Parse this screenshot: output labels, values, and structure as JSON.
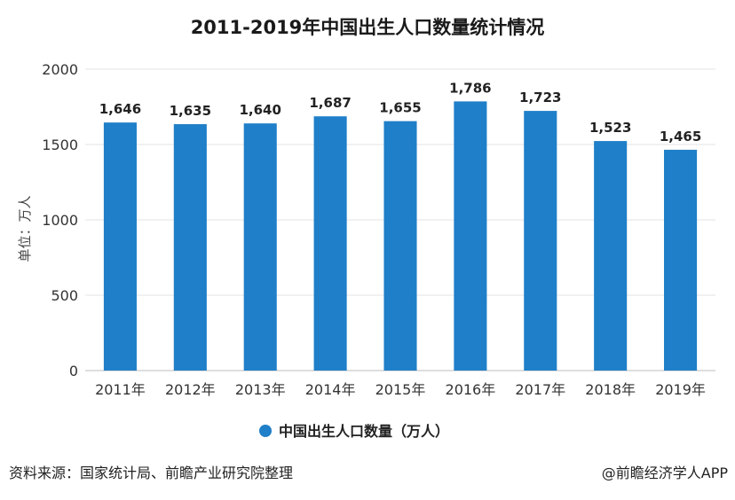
{
  "chart_data": {
    "type": "bar",
    "title": "2011-2019年中国出生人口数量统计情况",
    "categories": [
      "2011年",
      "2012年",
      "2013年",
      "2014年",
      "2015年",
      "2016年",
      "2017年",
      "2018年",
      "2019年"
    ],
    "series": [
      {
        "name": "中国出生人口数量（万人）",
        "values": [
          1646,
          1635,
          1640,
          1687,
          1655,
          1786,
          1723,
          1523,
          1465
        ],
        "labels": [
          "1,646",
          "1,635",
          "1,640",
          "1,687",
          "1,655",
          "1,786",
          "1,723",
          "1,523",
          "1,465"
        ],
        "color": "#1f7fc8"
      }
    ],
    "ylabel": "单位：万人",
    "yticks": [
      0,
      500,
      1000,
      1500,
      2000
    ],
    "ylim": [
      0,
      2000
    ],
    "grid": true,
    "legend_position": "bottom-center"
  },
  "footer": {
    "source": "资料来源：国家统计局、前瞻产业研究院整理",
    "brand": "@前瞻经济学人APP"
  }
}
